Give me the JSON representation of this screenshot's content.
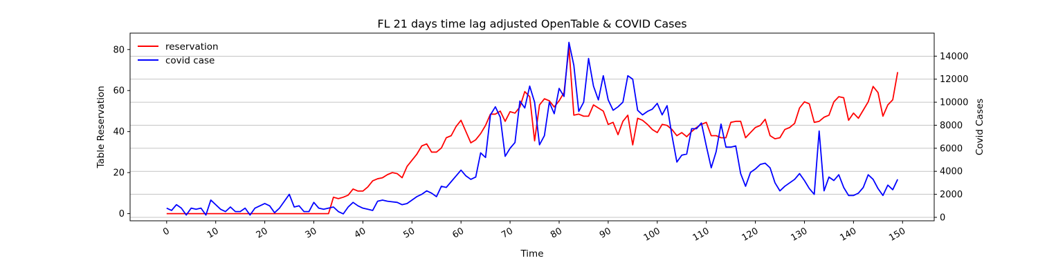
{
  "chart_data": {
    "type": "line",
    "title": "FL 21 days time lag adjusted OpenTable & COVID Cases",
    "xlabel": "Time",
    "ylabel": "Table Reservation",
    "y2label": "Covid Cases",
    "xlim": [
      -7.45,
      156.45
    ],
    "ylim": [
      -3.5,
      88
    ],
    "y2lim": [
      -300,
      16000
    ],
    "xticks": [
      0,
      10,
      20,
      30,
      40,
      50,
      60,
      70,
      80,
      90,
      100,
      110,
      120,
      130,
      140,
      150
    ],
    "yticks": [
      0,
      20,
      40,
      60,
      80
    ],
    "y2ticks": [
      0,
      2000,
      4000,
      6000,
      8000,
      10000,
      12000,
      14000
    ],
    "grid": "y2-major",
    "legend_position": "top-left",
    "series": [
      {
        "name": "reservation",
        "axis": "left",
        "color": "#ff0000",
        "y": [
          0,
          0,
          0,
          0,
          0,
          0,
          0,
          0,
          0,
          0,
          0,
          0,
          0,
          0,
          0,
          0,
          0,
          0,
          0,
          0,
          0,
          0,
          0,
          0,
          0,
          0,
          0,
          0,
          0,
          0,
          0,
          0,
          0,
          0,
          8,
          7.3,
          8,
          9,
          12,
          11,
          11,
          13,
          16,
          17,
          17.5,
          19,
          20,
          19.5,
          17.5,
          23,
          26,
          29,
          33,
          34,
          30,
          30,
          32,
          37,
          38,
          42.5,
          45.5,
          40,
          34.5,
          36,
          39,
          43,
          48.5,
          48.5,
          50,
          45,
          49.7,
          49,
          52,
          59.5,
          57,
          35.5,
          53,
          56,
          55,
          52,
          55,
          59,
          81,
          48,
          48.5,
          47.5,
          47.5,
          53,
          51.5,
          50,
          43.5,
          44.5,
          38.5,
          45,
          48,
          33.5,
          46.5,
          45.5,
          43.5,
          41,
          39.5,
          43.5,
          43,
          41,
          38,
          39.5,
          37.5,
          40,
          42,
          43.5,
          44.5,
          38,
          38,
          37,
          37,
          44.5,
          45,
          45,
          37,
          39.5,
          42,
          43,
          46,
          38,
          36.5,
          37,
          41,
          42,
          44,
          51.5,
          54.5,
          53.5,
          44.5,
          45,
          47,
          48,
          54.5,
          57,
          56.5,
          45.5,
          49,
          46.5,
          50.5,
          54.5,
          62,
          59,
          47.5,
          53,
          55.5,
          69
        ]
      },
      {
        "name": "covid case",
        "axis": "right",
        "color": "#0000ff",
        "y": [
          800,
          600,
          1100,
          800,
          200,
          800,
          700,
          800,
          200,
          1500,
          1100,
          700,
          500,
          900,
          500,
          500,
          800,
          200,
          800,
          1000,
          1200,
          1000,
          400,
          800,
          1400,
          2000,
          900,
          1000,
          500,
          500,
          1300,
          800,
          700,
          800,
          900,
          500,
          300,
          900,
          1300,
          1000,
          800,
          700,
          600,
          1400,
          1500,
          1400,
          1350,
          1300,
          1100,
          1200,
          1500,
          1800,
          2000,
          2300,
          2100,
          1800,
          2700,
          2600,
          3100,
          3600,
          4100,
          3600,
          3300,
          3500,
          5600,
          5200,
          8900,
          9600,
          8700,
          5300,
          6000,
          6500,
          10100,
          9500,
          11400,
          10000,
          6300,
          7100,
          10000,
          9000,
          11200,
          10500,
          15200,
          13200,
          9200,
          10000,
          13800,
          11400,
          10200,
          12300,
          10200,
          9300,
          9600,
          10000,
          12300,
          12000,
          9300,
          8900,
          9200,
          9400,
          9900,
          8900,
          9700,
          7100,
          4800,
          5400,
          5500,
          7700,
          7700,
          8200,
          6200,
          4300,
          5700,
          8100,
          6100,
          6100,
          6200,
          3800,
          2700,
          3900,
          4200,
          4600,
          4700,
          4300,
          3000,
          2300,
          2700,
          3000,
          3300,
          3800,
          3200,
          2500,
          2000,
          7500,
          2300,
          3500,
          3200,
          3700,
          2600,
          1900,
          1900,
          2100,
          2600,
          3700,
          3300,
          2500,
          1900,
          2800,
          2400,
          3300
        ]
      }
    ]
  }
}
